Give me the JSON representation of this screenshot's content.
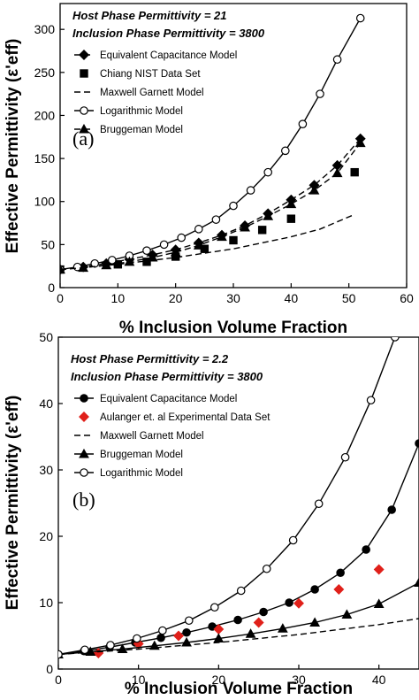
{
  "chart_data": [
    {
      "type": "line",
      "panel_label": "(a)",
      "annotations": [
        "Host Phase Permittivity = 21",
        "Inclusion Phase Permittivity = 3800"
      ],
      "xlabel": "% Inclusion Volume Fraction",
      "ylabel": "Effective Permittivity (ε'eff)",
      "xlim": [
        0,
        60
      ],
      "ylim": [
        0,
        330
      ],
      "xticks": [
        "0",
        "10",
        "20",
        "30",
        "40",
        "50",
        "60"
      ],
      "yticks": [
        "0",
        "50",
        "100",
        "150",
        "200",
        "250",
        "300"
      ],
      "legend_position": "top-left",
      "series": [
        {
          "name": "Equivalent Capacitance Model",
          "color": "#000000",
          "line": "dashed",
          "marker": "diamond-filled",
          "x": [
            0,
            4,
            8,
            12,
            16,
            20,
            24,
            28,
            32,
            36,
            40,
            44,
            48,
            52
          ],
          "y": [
            21,
            24,
            28,
            33,
            38,
            44,
            52,
            61,
            72,
            86,
            102,
            119,
            142,
            173
          ]
        },
        {
          "name": "Chiang NIST Data Set",
          "color": "#000000",
          "line": "none",
          "marker": "square-filled",
          "x": [
            0,
            10,
            15,
            20,
            25,
            30,
            35,
            40,
            51
          ],
          "y": [
            21,
            27,
            30,
            36,
            45,
            55,
            67,
            80,
            134
          ]
        },
        {
          "name": "Maxwell Garnett Model",
          "color": "#000000",
          "line": "dashed",
          "marker": "none",
          "x": [
            0,
            10,
            20,
            30,
            40,
            45,
            51
          ],
          "y": [
            21,
            27,
            35,
            45,
            59,
            68,
            85
          ]
        },
        {
          "name": "Logarithmic Model",
          "color": "#000000",
          "line": "solid",
          "marker": "circle-open",
          "x": [
            0,
            3,
            6,
            9,
            12,
            15,
            18,
            21,
            24,
            27,
            30,
            33,
            36,
            39,
            42,
            45,
            48,
            52
          ],
          "y": [
            21,
            24,
            28,
            32,
            37,
            43,
            50,
            58,
            68,
            79,
            95,
            113,
            134,
            159,
            190,
            225,
            265,
            313
          ]
        },
        {
          "name": "Bruggeman Model",
          "color": "#000000",
          "line": "dashed",
          "marker": "triangle-filled",
          "x": [
            0,
            4,
            8,
            12,
            16,
            20,
            24,
            28,
            32,
            36,
            40,
            44,
            48,
            52
          ],
          "y": [
            21,
            23,
            26,
            30,
            35,
            41,
            49,
            59,
            70,
            83,
            97,
            113,
            133,
            168
          ]
        }
      ]
    },
    {
      "type": "line",
      "panel_label": "(b)",
      "annotations": [
        "Host Phase Permittivity = 2.2",
        "Inclusion Phase Permittivity = 3800"
      ],
      "xlabel": "% Inclusion Volume Fraction",
      "ylabel": "Effective Permittivity (ε'eff)",
      "xlim": [
        0,
        45
      ],
      "ylim": [
        0,
        50
      ],
      "xticks": [
        "0",
        "10",
        "20",
        "30",
        "40"
      ],
      "yticks": [
        "0",
        "10",
        "20",
        "30",
        "40",
        "50"
      ],
      "legend_position": "top-left",
      "series": [
        {
          "name": "Equivalent Capacitance Model",
          "color": "#000000",
          "line": "solid",
          "marker": "circle-filled",
          "x": [
            0,
            3.2,
            6.4,
            9.6,
            12.8,
            16,
            19.2,
            22.4,
            25.6,
            28.8,
            32,
            35.2,
            38.4,
            41.6,
            45
          ],
          "y": [
            2.2,
            2.7,
            3.3,
            4.0,
            4.7,
            5.5,
            6.4,
            7.4,
            8.6,
            10.0,
            12.0,
            14.5,
            18.0,
            24.0,
            34.0
          ]
        },
        {
          "name": "Aulanger et. al Experimental Data Set",
          "color": "#e0201a",
          "line": "none",
          "marker": "diamond-filled",
          "x": [
            5,
            10,
            15,
            20,
            25,
            30,
            35,
            40
          ],
          "y": [
            2.4,
            3.8,
            5.0,
            6.0,
            7.0,
            9.9,
            12.0,
            15.0
          ]
        },
        {
          "name": "Maxwell Garnett Model",
          "color": "#000000",
          "line": "dashed",
          "marker": "none",
          "x": [
            0,
            10,
            20,
            30,
            40,
            45
          ],
          "y": [
            2.2,
            3.0,
            4.0,
            5.2,
            6.7,
            7.6
          ]
        },
        {
          "name": "Bruggeman Model",
          "color": "#000000",
          "line": "solid",
          "marker": "triangle-filled",
          "x": [
            0,
            4,
            8,
            12,
            16,
            20,
            24,
            28,
            32,
            36,
            40,
            45
          ],
          "y": [
            2.2,
            2.6,
            3.0,
            3.5,
            4.0,
            4.6,
            5.3,
            6.1,
            7.0,
            8.2,
            9.8,
            13.0
          ]
        },
        {
          "name": "Logarithmic Model",
          "color": "#000000",
          "line": "solid",
          "marker": "circle-open",
          "x": [
            0,
            3.3,
            6.5,
            9.8,
            13,
            16.3,
            19.5,
            22.8,
            26,
            29.3,
            32.5,
            35.8,
            39,
            42
          ],
          "y": [
            2.2,
            2.9,
            3.6,
            4.6,
            5.8,
            7.3,
            9.3,
            11.8,
            15.1,
            19.4,
            24.9,
            31.9,
            40.5,
            50.0
          ]
        }
      ]
    }
  ]
}
